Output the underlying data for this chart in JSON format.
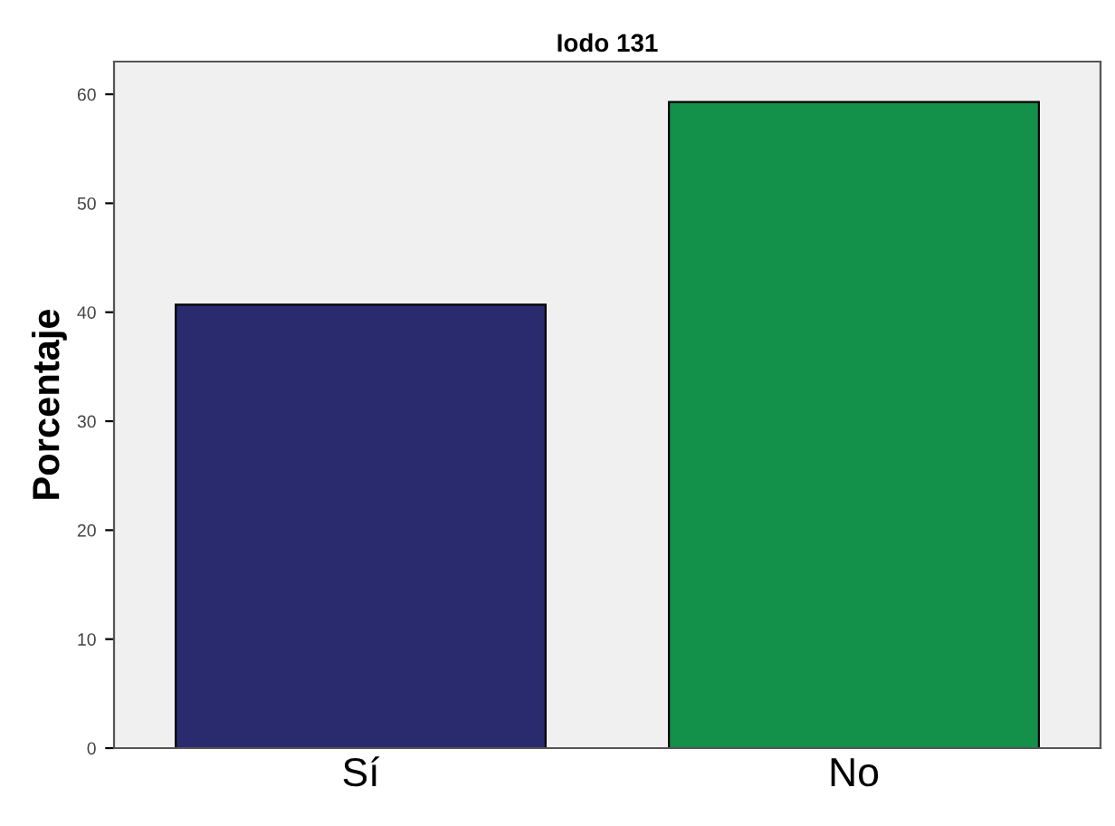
{
  "chart_data": {
    "type": "bar",
    "title": "Iodo 131",
    "ylabel": "Porcentaje",
    "categories": [
      "Sí",
      "No"
    ],
    "values": [
      40.7,
      59.3
    ],
    "colors": [
      "#2a2a6e",
      "#13904a"
    ],
    "ylim": [
      0,
      63
    ],
    "yticks": [
      0,
      10,
      20,
      30,
      40,
      50,
      60
    ],
    "grid": false,
    "legend": false
  }
}
